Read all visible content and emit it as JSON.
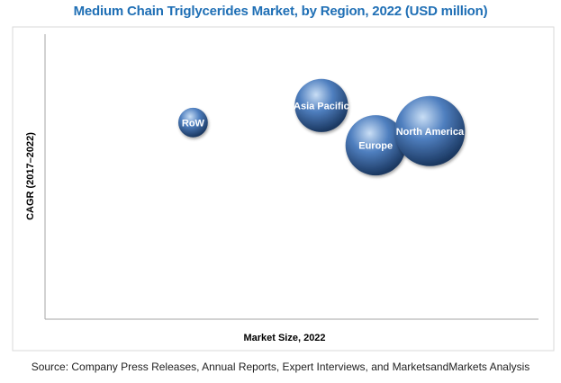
{
  "chart_data": {
    "type": "bubble",
    "title": "Medium Chain Triglycerides Market, by Region, 2022 (USD million)",
    "xlabel": "Market Size, 2022",
    "ylabel": "CAGR (2017–2022)",
    "source": "Source: Company Press Releases, Annual Reports, Expert Interviews, and MarketsandMarkets Analysis",
    "xlim": [
      0,
      100
    ],
    "ylim": [
      0,
      100
    ],
    "grid": false,
    "legend": "none",
    "points": [
      {
        "label": "RoW",
        "x": 30,
        "y": 69,
        "size": 0.42
      },
      {
        "label": "Asia Pacific",
        "x": 56,
        "y": 75,
        "size": 0.76
      },
      {
        "label": "Europe",
        "x": 67,
        "y": 61,
        "size": 0.86
      },
      {
        "label": "North America",
        "x": 78,
        "y": 66,
        "size": 1.0
      }
    ],
    "colors": {
      "title": "#1f6fb5",
      "bubble_light": "#c9def5",
      "bubble_mid": "#4f7fbf",
      "bubble_dark": "#1a3760",
      "axis": "#a6a6a6"
    }
  }
}
